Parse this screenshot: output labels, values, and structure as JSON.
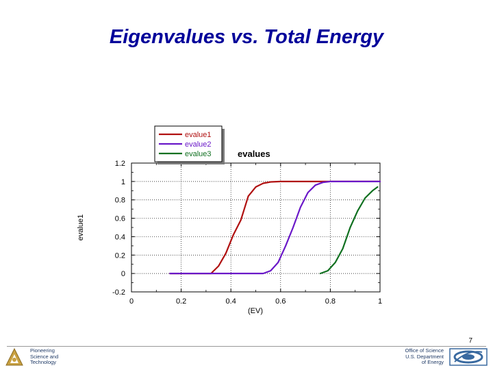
{
  "slide": {
    "title": "Eigenvalues vs. Total Energy",
    "page_number": "7",
    "footer_left": [
      "Pioneering",
      "Science and",
      "Technology"
    ],
    "footer_right": [
      "Office of Science",
      "U.S. Department",
      "of Energy"
    ]
  },
  "colors": {
    "title": "#00009a",
    "evalue1": "#b01010",
    "evalue2": "#6a18c8",
    "evalue3": "#107020",
    "footer_text": "#1f3a66",
    "logo_left": "#c8a040",
    "logo_right": "#3a6aa0"
  },
  "chart_data": {
    "type": "line",
    "title": "evalues",
    "xlabel": "(EV)",
    "ylabel": "evalue1",
    "xlim": [
      0,
      1
    ],
    "ylim": [
      -0.2,
      1.2
    ],
    "xticks": [
      0,
      0.2,
      0.4,
      0.6,
      0.8,
      1
    ],
    "xtick_labels": [
      "0",
      "0.2",
      "0.4",
      "0.6",
      "0.8",
      "1"
    ],
    "yticks": [
      -0.2,
      0,
      0.2,
      0.4,
      0.6,
      0.8,
      1,
      1.2
    ],
    "ytick_labels": [
      "-0.2",
      "0",
      "0.2",
      "0.4",
      "0.6",
      "0.8",
      "1",
      "1.2"
    ],
    "grid": true,
    "legend_position": "top-left, above plot",
    "series": [
      {
        "name": "evalue1",
        "x": [
          0.155,
          0.32,
          0.35,
          0.38,
          0.41,
          0.44,
          0.47,
          0.5,
          0.53,
          0.56,
          0.6,
          0.65,
          1.0
        ],
        "y": [
          0.0,
          0.0,
          0.08,
          0.22,
          0.42,
          0.58,
          0.84,
          0.94,
          0.98,
          0.995,
          1.0,
          1.0,
          1.0
        ]
      },
      {
        "name": "evalue2",
        "x": [
          0.155,
          0.53,
          0.56,
          0.59,
          0.62,
          0.65,
          0.68,
          0.71,
          0.74,
          0.77,
          0.8,
          0.84,
          1.0
        ],
        "y": [
          0.0,
          0.0,
          0.03,
          0.12,
          0.3,
          0.5,
          0.72,
          0.88,
          0.96,
          0.99,
          1.0,
          1.0,
          1.0
        ]
      },
      {
        "name": "evalue3",
        "x": [
          0.76,
          0.79,
          0.82,
          0.85,
          0.88,
          0.91,
          0.94,
          0.97,
          0.99
        ],
        "y": [
          0.0,
          0.03,
          0.12,
          0.27,
          0.5,
          0.68,
          0.82,
          0.9,
          0.94
        ]
      }
    ]
  }
}
